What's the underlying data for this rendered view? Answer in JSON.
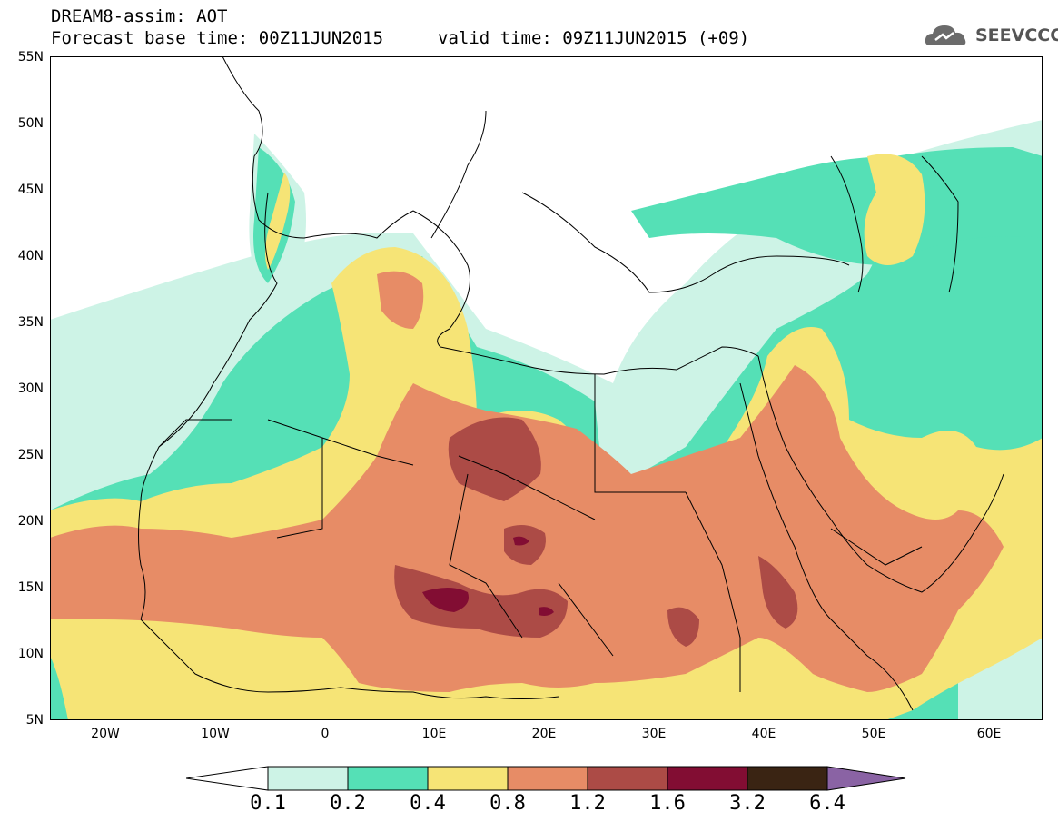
{
  "title": {
    "line1": "DREAM8-assim: AOT",
    "line2": "Forecast base time: 00Z11JUN2015",
    "line3": "valid time: 09Z11JUN2015 (+09)"
  },
  "logo": {
    "text": "SEEVCCC",
    "icon": "cloud-icon"
  },
  "map": {
    "lat_labels": [
      "55N",
      "50N",
      "45N",
      "40N",
      "35N",
      "30N",
      "25N",
      "20N",
      "15N",
      "10N",
      "5N"
    ],
    "lon_labels": [
      "20W",
      "10W",
      "0",
      "10E",
      "20E",
      "30E",
      "40E",
      "50E",
      "60E"
    ],
    "lat_range": [
      5,
      55
    ],
    "lon_range": [
      -25,
      65
    ]
  },
  "colorbar": {
    "labels": [
      "0.1",
      "0.2",
      "0.4",
      "0.8",
      "1.2",
      "1.6",
      "3.2",
      "6.4"
    ],
    "colors": [
      "#cdf3e6",
      "#55e0b6",
      "#f6e476",
      "#e78c66",
      "#ac4b46",
      "#820d33",
      "#3a2413",
      "#8a63a4"
    ]
  }
}
